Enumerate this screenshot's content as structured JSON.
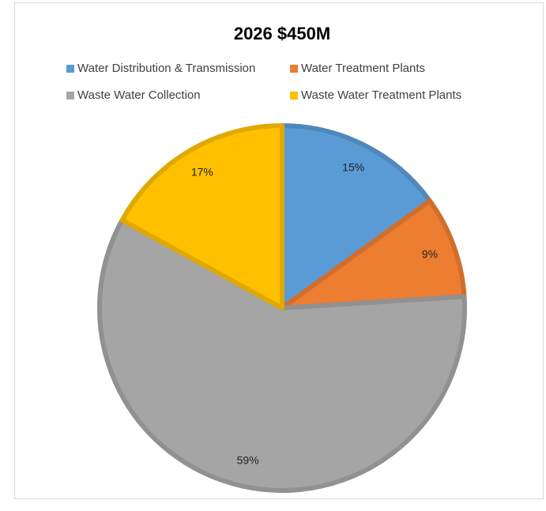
{
  "chart_data": {
    "type": "pie",
    "title": "2026 $450M",
    "categories": [
      "Water Distribution & Transmission",
      "Water Treatment Plants",
      "Waste Water Collection",
      "Waste Water Treatment Plants"
    ],
    "values": [
      15,
      9,
      59,
      17
    ],
    "value_labels": [
      "15%",
      "9%",
      "59%",
      "17%"
    ],
    "colors": [
      "#5b9bd5",
      "#ed7d31",
      "#a5a5a5",
      "#ffc000"
    ],
    "legend": "top"
  }
}
